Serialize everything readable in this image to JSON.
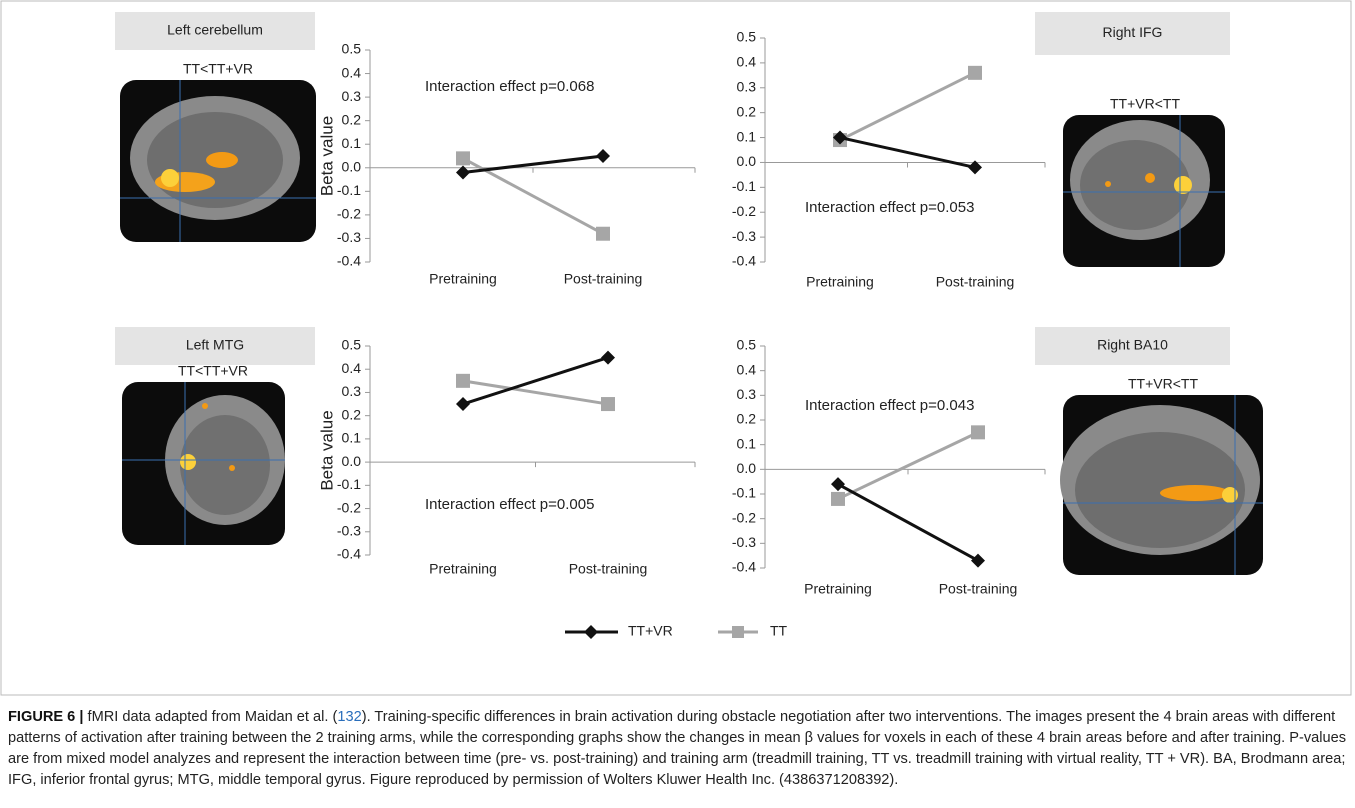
{
  "chart_data": [
    {
      "type": "line",
      "region": "Left cerebellum",
      "contrast": "TT<TT+VR",
      "ylabel": "Beta value",
      "annotation": "Interaction effect p=0.068",
      "categories": [
        "Pretraining",
        "Post-training"
      ],
      "series": [
        {
          "name": "TT+VR",
          "color": "#111111",
          "marker": "diamond",
          "values": [
            -0.02,
            0.05
          ]
        },
        {
          "name": "TT",
          "color": "#a6a6a6",
          "marker": "square",
          "values": [
            0.04,
            -0.28
          ]
        }
      ],
      "ylim": [
        -0.4,
        0.5
      ],
      "yticks": [
        -0.4,
        -0.3,
        -0.2,
        -0.1,
        {
          "value": 0,
          "label": "0.0"
        },
        0.1,
        0.2,
        0.3,
        0.4,
        0.5
      ]
    },
    {
      "type": "line",
      "region": "Right IFG",
      "contrast": "TT+VR<TT",
      "annotation": "Interaction effect p=0.053",
      "categories": [
        "Pretraining",
        "Post-training"
      ],
      "series": [
        {
          "name": "TT+VR",
          "color": "#111111",
          "marker": "diamond",
          "values": [
            0.1,
            -0.02
          ]
        },
        {
          "name": "TT",
          "color": "#a6a6a6",
          "marker": "square",
          "values": [
            0.09,
            0.36
          ]
        }
      ],
      "ylim": [
        -0.4,
        0.5
      ],
      "yticks": [
        -0.4,
        -0.3,
        -0.2,
        -0.1,
        {
          "value": 0,
          "label": "0.0"
        },
        0.1,
        0.2,
        0.3,
        0.4,
        0.5
      ]
    },
    {
      "type": "line",
      "region": "Left MTG",
      "contrast": "TT<TT+VR",
      "ylabel": "Beta value",
      "annotation": "Interaction effect p=0.005",
      "categories": [
        "Pretraining",
        "Post-training"
      ],
      "series": [
        {
          "name": "TT+VR",
          "color": "#111111",
          "marker": "diamond",
          "values": [
            0.25,
            0.45
          ]
        },
        {
          "name": "TT",
          "color": "#a6a6a6",
          "marker": "square",
          "values": [
            0.35,
            0.25
          ]
        }
      ],
      "ylim": [
        -0.4,
        0.5
      ],
      "yticks": [
        -0.4,
        -0.3,
        -0.2,
        -0.1,
        {
          "value": 0,
          "label": "0.0"
        },
        0.1,
        0.2,
        0.3,
        0.4,
        0.5
      ]
    },
    {
      "type": "line",
      "region": "Right BA10",
      "contrast": "TT+VR<TT",
      "annotation": "Interaction effect p=0.043",
      "categories": [
        "Pretraining",
        "Post-training"
      ],
      "series": [
        {
          "name": "TT+VR",
          "color": "#111111",
          "marker": "diamond",
          "values": [
            -0.06,
            -0.37
          ]
        },
        {
          "name": "TT",
          "color": "#a6a6a6",
          "marker": "square",
          "values": [
            -0.12,
            0.15
          ]
        }
      ],
      "ylim": [
        -0.4,
        0.5
      ],
      "yticks": [
        -0.4,
        -0.3,
        -0.2,
        -0.1,
        {
          "value": 0,
          "label": "0.0"
        },
        0.1,
        0.2,
        0.3,
        0.4,
        0.5
      ]
    }
  ],
  "caption": {
    "label": "FIGURE 6 |",
    "text_1": "fMRI data adapted from Maidan et al. (",
    "ref": "132",
    "text_2": "). Training-specific differences in brain activation during obstacle negotiation after two interventions. The images present the 4 brain areas with different patterns of activation after training between the 2 training arms, while the corresponding graphs show the changes in mean β values for voxels in each of these 4 brain areas before and after training. P-values are from mixed model analyzes and represent the interaction between time (pre- vs. post-training) and training arm (treadmill training, TT vs. treadmill training with virtual reality, TT + VR). BA, Brodmann area; IFG, inferior frontal gyrus; MTG, middle temporal gyrus. Figure reproduced by permission of Wolters Kluwer Health Inc. (4386371208392)."
  }
}
